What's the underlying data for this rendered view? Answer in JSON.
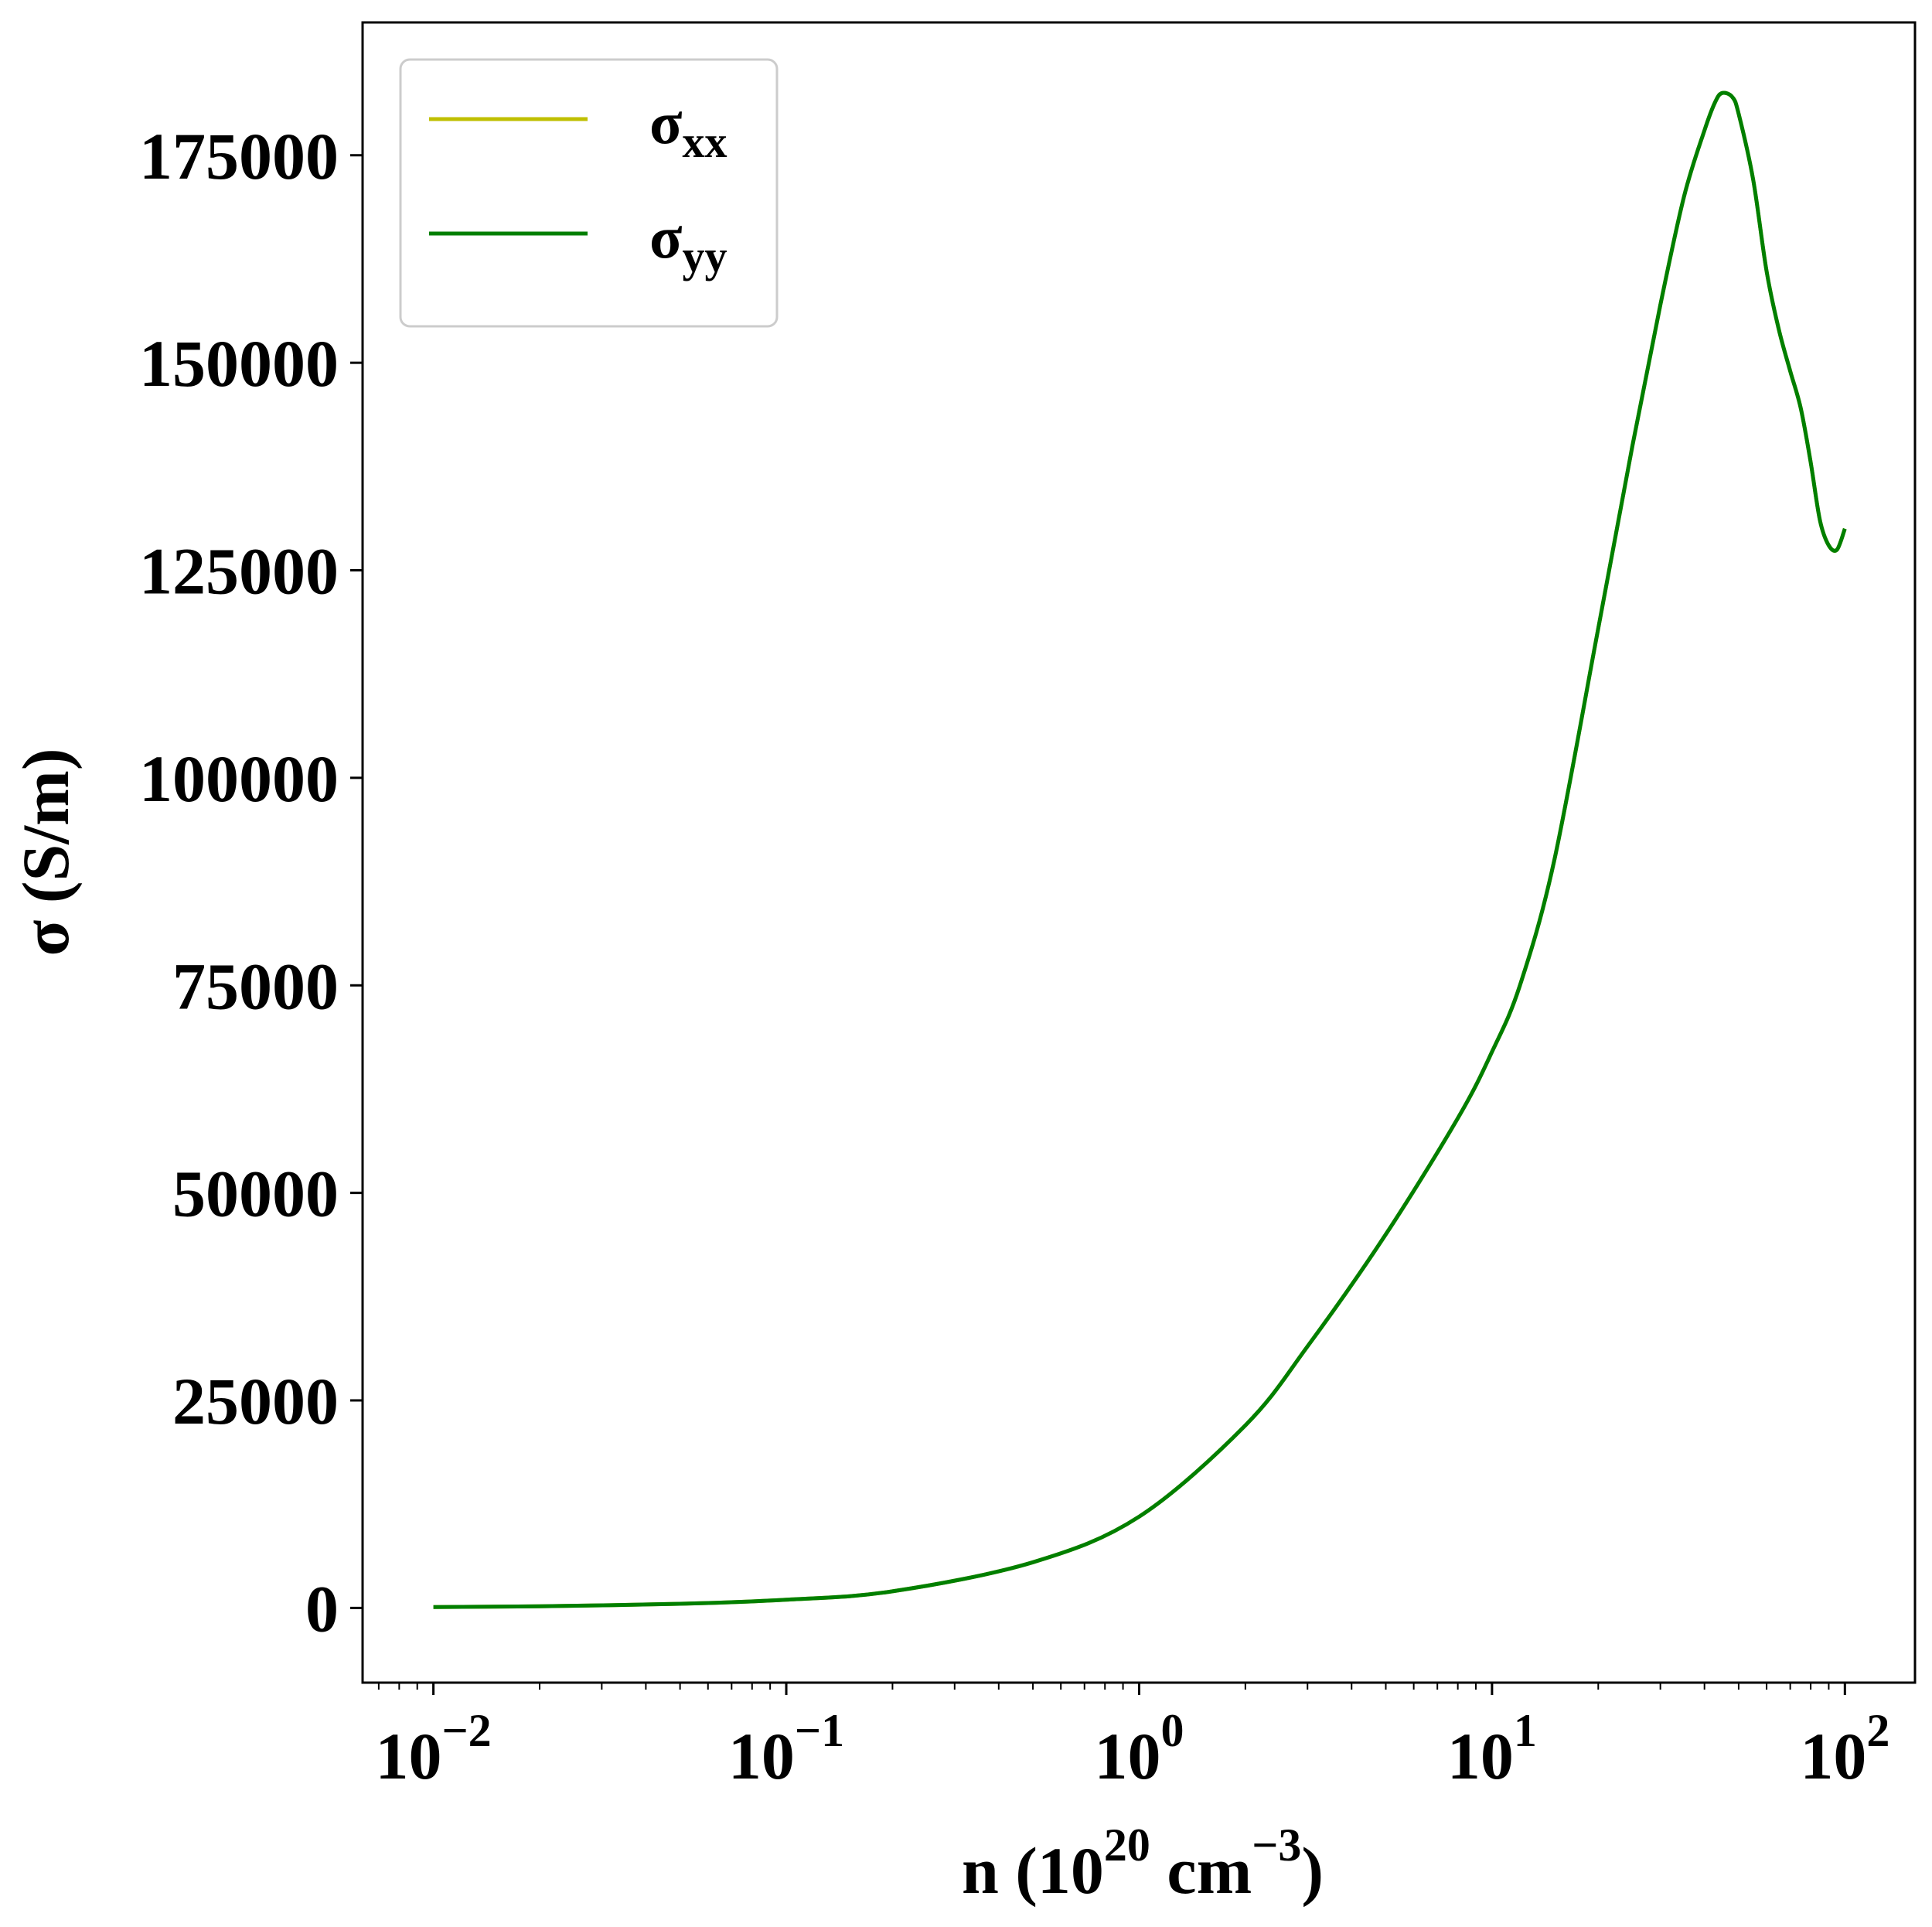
{
  "chart_data": {
    "type": "line",
    "xscale": "log",
    "xlim": [
      0.0063,
      158
    ],
    "ylim": [
      -9000,
      191000
    ],
    "grid": false,
    "legend_position": "top-left",
    "xlabel": {
      "base": "n (10",
      "sup1": "20",
      "mid": " cm",
      "sup2": "−3",
      "end": ")"
    },
    "ylabel": "σ (S/m)",
    "x_ticks": [
      {
        "value": 0.01,
        "base": "10",
        "exp": "−2"
      },
      {
        "value": 0.1,
        "base": "10",
        "exp": "−1"
      },
      {
        "value": 1,
        "base": "10",
        "exp": "0"
      },
      {
        "value": 10,
        "base": "10",
        "exp": "1"
      },
      {
        "value": 100,
        "base": "10",
        "exp": "2"
      }
    ],
    "y_ticks": [
      {
        "value": 0,
        "label": "0"
      },
      {
        "value": 25000,
        "label": "25000"
      },
      {
        "value": 50000,
        "label": "50000"
      },
      {
        "value": 75000,
        "label": "75000"
      },
      {
        "value": 100000,
        "label": "100000"
      },
      {
        "value": 125000,
        "label": "125000"
      },
      {
        "value": 150000,
        "label": "150000"
      },
      {
        "value": 175000,
        "label": "175000"
      }
    ],
    "series": [
      {
        "name": "σxx",
        "label_base": "σ",
        "label_sub": "xx",
        "color": "#bfbf00",
        "x": [
          0.01,
          0.02,
          0.05,
          0.1,
          0.2,
          0.5,
          1,
          2,
          3,
          5,
          8,
          10,
          12,
          15,
          20,
          25,
          30,
          35,
          40,
          43,
          45,
          48,
          50,
          55,
          60,
          65,
          70,
          75,
          80,
          85,
          90,
          95,
          100
        ],
        "y": [
          100,
          200,
          500,
          1000,
          2000,
          5500,
          11000,
          22000,
          31500,
          45000,
          59000,
          67000,
          75000,
          90000,
          118000,
          140000,
          157000,
          170000,
          178000,
          181500,
          182500,
          182000,
          180000,
          172000,
          161000,
          154000,
          149000,
          144500,
          138000,
          131000,
          128000,
          127500,
          130000
        ]
      },
      {
        "name": "σyy",
        "label_base": "σ",
        "label_sub": "yy",
        "color": "#007f00",
        "x": [
          0.01,
          0.02,
          0.05,
          0.1,
          0.2,
          0.5,
          1,
          2,
          3,
          5,
          8,
          10,
          12,
          15,
          20,
          25,
          30,
          35,
          40,
          43,
          45,
          48,
          50,
          55,
          60,
          65,
          70,
          75,
          80,
          85,
          90,
          95,
          100
        ],
        "y": [
          100,
          200,
          500,
          1000,
          2000,
          5500,
          11000,
          22000,
          31500,
          45000,
          59000,
          67000,
          75000,
          90000,
          118000,
          140000,
          157000,
          170000,
          178000,
          181500,
          182500,
          182000,
          180000,
          172000,
          161000,
          154000,
          149000,
          144500,
          138000,
          131000,
          128000,
          127500,
          130000
        ]
      }
    ]
  }
}
